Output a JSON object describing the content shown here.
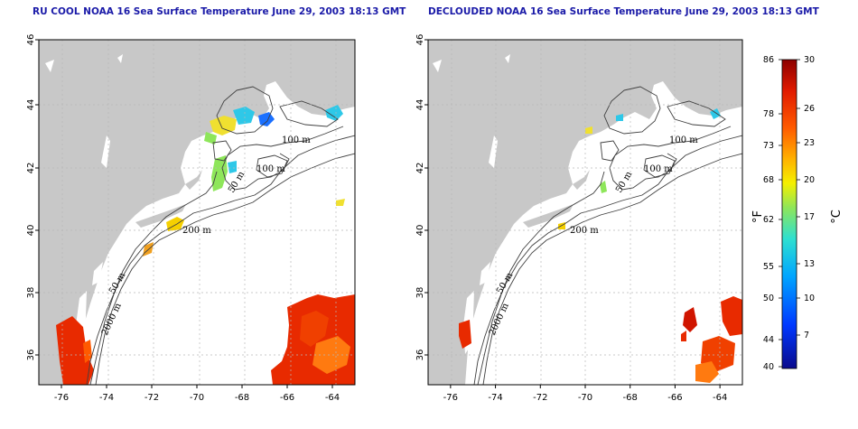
{
  "panels": [
    {
      "id": "left",
      "title": "RU COOL NOAA 16 Sea Surface Temperature June 29, 2003 18:13 GMT",
      "contour_labels": {
        "c100a": "100 m",
        "c100b": "100 m",
        "c50a": "50 m",
        "c50b": "50 m",
        "c200": "200 m",
        "c2000": "2000 m"
      }
    },
    {
      "id": "right",
      "title": "DECLOUDED NOAA 16 Sea Surface Temperature June 29, 2003 18:13 GMT",
      "contour_labels": {
        "c100a": "100 m",
        "c100b": "100 m",
        "c50a": "50 m",
        "c50b": "50 m",
        "c200": "200 m",
        "c2000": "2000 m"
      }
    }
  ],
  "axes": {
    "lat_ticks": [
      "46",
      "44",
      "42",
      "40",
      "38",
      "36"
    ],
    "lon_ticks": [
      "-76",
      "-74",
      "-72",
      "-70",
      "-68",
      "-66",
      "-64"
    ]
  },
  "colorbar": {
    "unit_f": "°F",
    "unit_c": "°C",
    "fahrenheit_ticks": [
      "86",
      "78",
      "73",
      "68",
      "62",
      "55",
      "50",
      "44",
      "40"
    ],
    "celsius_ticks": [
      "30",
      "26",
      "23",
      "20",
      "17",
      "13",
      "10",
      "7"
    ],
    "colors": [
      "#0a0a8c",
      "#0038ff",
      "#00a6ff",
      "#2ee0d0",
      "#8ee65a",
      "#f5f000",
      "#ffb000",
      "#ff5a00",
      "#e01a00",
      "#8c0000"
    ]
  }
}
